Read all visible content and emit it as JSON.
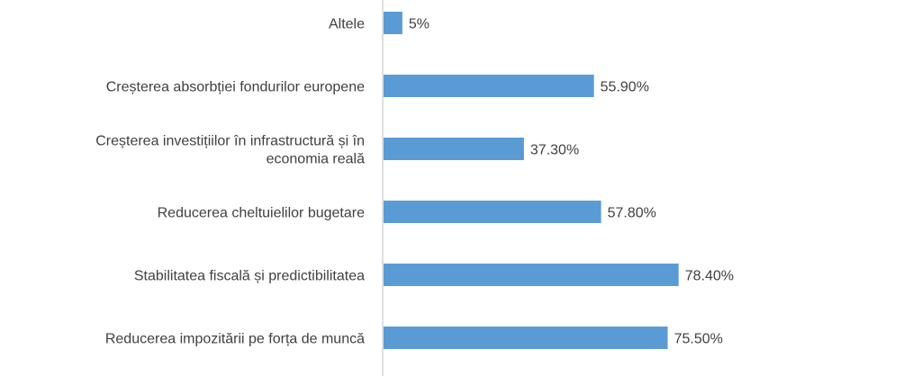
{
  "chart_data": {
    "type": "bar",
    "orientation": "horizontal",
    "title": "",
    "xlabel": "",
    "ylabel": "",
    "xlim": [
      0,
      100
    ],
    "grid": false,
    "legend": "none",
    "bar_color": "#5b9bd5",
    "categories": [
      [
        "Altele"
      ],
      [
        "Creșterea absorbției fondurilor europene"
      ],
      [
        "Creșterea investițiilor în infrastructură și în",
        "economia reală"
      ],
      [
        "Reducerea cheltuielilor bugetare"
      ],
      [
        "Stabilitatea  fiscală și predictibilitatea"
      ],
      [
        "Reducerea impozitării pe forța de muncă"
      ]
    ],
    "values": [
      5,
      55.9,
      37.3,
      57.8,
      78.4,
      75.5
    ],
    "data_labels": [
      "5%",
      "55.90%",
      "37.30%",
      "57.80%",
      "78.40%",
      "75.50%"
    ]
  }
}
